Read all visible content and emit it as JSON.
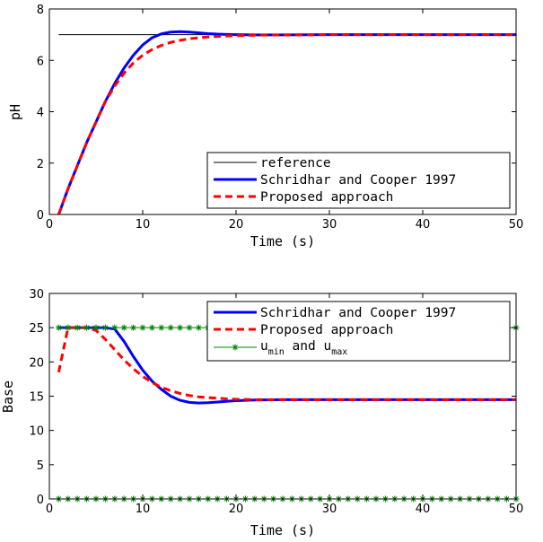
{
  "chart_data": [
    {
      "type": "line",
      "xlabel": "Time (s)",
      "ylabel": "pH",
      "xlim": [
        0,
        50
      ],
      "ylim": [
        0,
        8
      ],
      "xticks": [
        0,
        10,
        20,
        30,
        40,
        50
      ],
      "yticks": [
        0,
        2,
        4,
        6,
        8
      ],
      "grid": false,
      "legend_position": "bottom-right",
      "series": [
        {
          "name": "reference",
          "color": "#000000",
          "style": "solid-thin",
          "x": [
            1,
            50
          ],
          "y": [
            7,
            7
          ]
        },
        {
          "name": "Schridhar and Cooper 1997",
          "color": "#0000ff",
          "style": "solid-thick",
          "x": [
            1,
            2,
            3,
            4,
            5,
            6,
            7,
            8,
            9,
            10,
            11,
            12,
            13,
            14,
            15,
            16,
            17,
            18,
            19,
            20,
            22,
            25,
            30,
            40,
            50
          ],
          "y": [
            0,
            1.0,
            1.9,
            2.8,
            3.6,
            4.4,
            5.1,
            5.7,
            6.2,
            6.6,
            6.88,
            7.03,
            7.1,
            7.12,
            7.1,
            7.07,
            7.04,
            7.02,
            7.01,
            7.0,
            6.99,
            6.99,
            7.0,
            7.0,
            7.0
          ]
        },
        {
          "name": "Proposed approach",
          "color": "#ff0000",
          "style": "dashed-thick",
          "x": [
            1,
            2,
            3,
            4,
            5,
            6,
            7,
            8,
            9,
            10,
            11,
            12,
            13,
            14,
            15,
            16,
            17,
            18,
            19,
            20,
            22,
            25,
            30,
            40,
            50
          ],
          "y": [
            0,
            1.0,
            1.9,
            2.8,
            3.6,
            4.4,
            5.0,
            5.5,
            5.9,
            6.2,
            6.42,
            6.58,
            6.7,
            6.78,
            6.84,
            6.88,
            6.91,
            6.93,
            6.95,
            6.96,
            6.98,
            6.99,
            7.0,
            7.0,
            7.0
          ]
        }
      ]
    },
    {
      "type": "line",
      "xlabel": "Time (s)",
      "ylabel": "Base",
      "xlim": [
        0,
        50
      ],
      "ylim": [
        0,
        30
      ],
      "xticks": [
        0,
        10,
        20,
        30,
        40,
        50
      ],
      "yticks": [
        0,
        5,
        10,
        15,
        20,
        25,
        30
      ],
      "grid": false,
      "legend_position": "top-right",
      "series": [
        {
          "name": "Schridhar and Cooper 1997",
          "color": "#0000ff",
          "style": "solid-thick",
          "x": [
            1,
            2,
            3,
            4,
            5,
            6,
            7,
            8,
            9,
            10,
            11,
            12,
            13,
            14,
            15,
            16,
            17,
            18,
            19,
            20,
            22,
            25,
            30,
            40,
            50
          ],
          "y": [
            25,
            25,
            25,
            25,
            25,
            25,
            24.8,
            23.0,
            20.8,
            18.8,
            17.2,
            16.0,
            15.0,
            14.4,
            14.1,
            14.0,
            14.05,
            14.15,
            14.25,
            14.35,
            14.45,
            14.5,
            14.5,
            14.5,
            14.5
          ]
        },
        {
          "name": "Proposed approach",
          "color": "#ff0000",
          "style": "dashed-thick",
          "x": [
            1,
            2,
            3,
            4,
            5,
            6,
            7,
            8,
            9,
            10,
            11,
            12,
            13,
            14,
            15,
            16,
            17,
            18,
            19,
            20,
            22,
            25,
            30,
            40,
            50
          ],
          "y": [
            18.5,
            25,
            25,
            25,
            24.6,
            23.3,
            21.8,
            20.3,
            19.0,
            17.9,
            17.0,
            16.3,
            15.8,
            15.4,
            15.1,
            14.9,
            14.8,
            14.7,
            14.6,
            14.55,
            14.5,
            14.5,
            14.5,
            14.5,
            14.5
          ]
        },
        {
          "name_parts": [
            "u",
            "min",
            " and u",
            "max"
          ],
          "color": "#008000",
          "style": "solid-thin-star-markers",
          "x": [
            1,
            50
          ],
          "y_upper": [
            25,
            25
          ],
          "y_lower": [
            0,
            0
          ],
          "marker": "star",
          "marker_step": 1
        }
      ]
    }
  ]
}
